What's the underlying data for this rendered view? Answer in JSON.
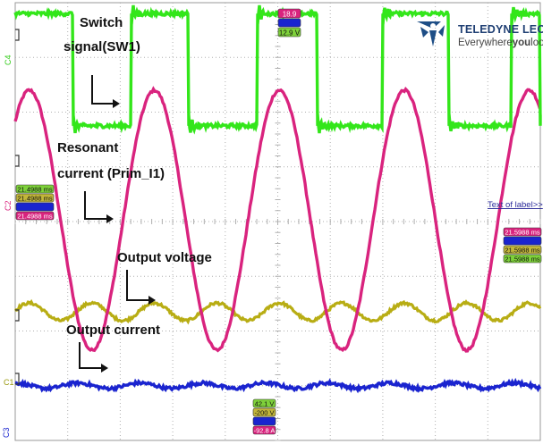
{
  "brand": {
    "name": "TELEDYNE LECROY",
    "tagline_prefix": "Everywhere",
    "tagline_bold": "you",
    "tagline_suffix": "look",
    "icon": "teledyne-logo-icon"
  },
  "annotations": {
    "switch_l1": "Switch",
    "switch_l2": "signal(SW1)",
    "resonant_l1": "Resonant",
    "resonant_l2": "current (Prim_I1)",
    "output_voltage": "Output voltage",
    "output_current": "Output current",
    "text_of_label": "Text of label>>"
  },
  "channels": {
    "c4": "C4",
    "c2": "C2",
    "c1": "C1",
    "c3": "C3"
  },
  "readouts": {
    "top_red": "18.9",
    "top_green": "12.9 V",
    "left_1": "21.4988 ms",
    "left_2": "21.4988 ms",
    "left_4": "21.4988 ms",
    "right_1": "21.5988 ms",
    "right_3": "21.5988 ms",
    "right_4": "21.5988 ms",
    "bottom_1": "42.1 V",
    "bottom_2": "-200 V",
    "bottom_4": "-92.8 A"
  },
  "colors": {
    "switch_signal": "#33e61a",
    "resonant_current": "#d9237e",
    "output_voltage": "#b8ad14",
    "output_current": "#1a24cf",
    "grid": "#b0b0b0",
    "text_link": "#2a2a99"
  },
  "chart_data": {
    "type": "line",
    "grid_divisions": {
      "horizontal": 10,
      "vertical": 8
    },
    "series": [
      {
        "name": "Switch signal(SW1)",
        "waveform": "square",
        "high_intervals_div": [
          [
            0.0,
            1.1
          ],
          [
            2.2,
            3.3
          ],
          [
            4.6,
            5.75
          ],
          [
            7.0,
            8.25
          ],
          [
            9.45,
            10.0
          ]
        ],
        "high_level_div": 7.8,
        "low_level_div": 5.75
      },
      {
        "name": "Resonant current (Prim_I1)",
        "waveform": "sine",
        "period_div": 2.38,
        "peak_div": 2.4,
        "valley_div": -2.35,
        "first_peak_x_div": 0.27
      },
      {
        "name": "Output voltage",
        "waveform": "sine",
        "period_div": 1.19,
        "center_div": -1.65,
        "amplitude_div": 0.16
      },
      {
        "name": "Output current",
        "waveform": "sine",
        "period_div": 1.19,
        "center_div": -3.0,
        "amplitude_div": 0.05
      }
    ]
  }
}
